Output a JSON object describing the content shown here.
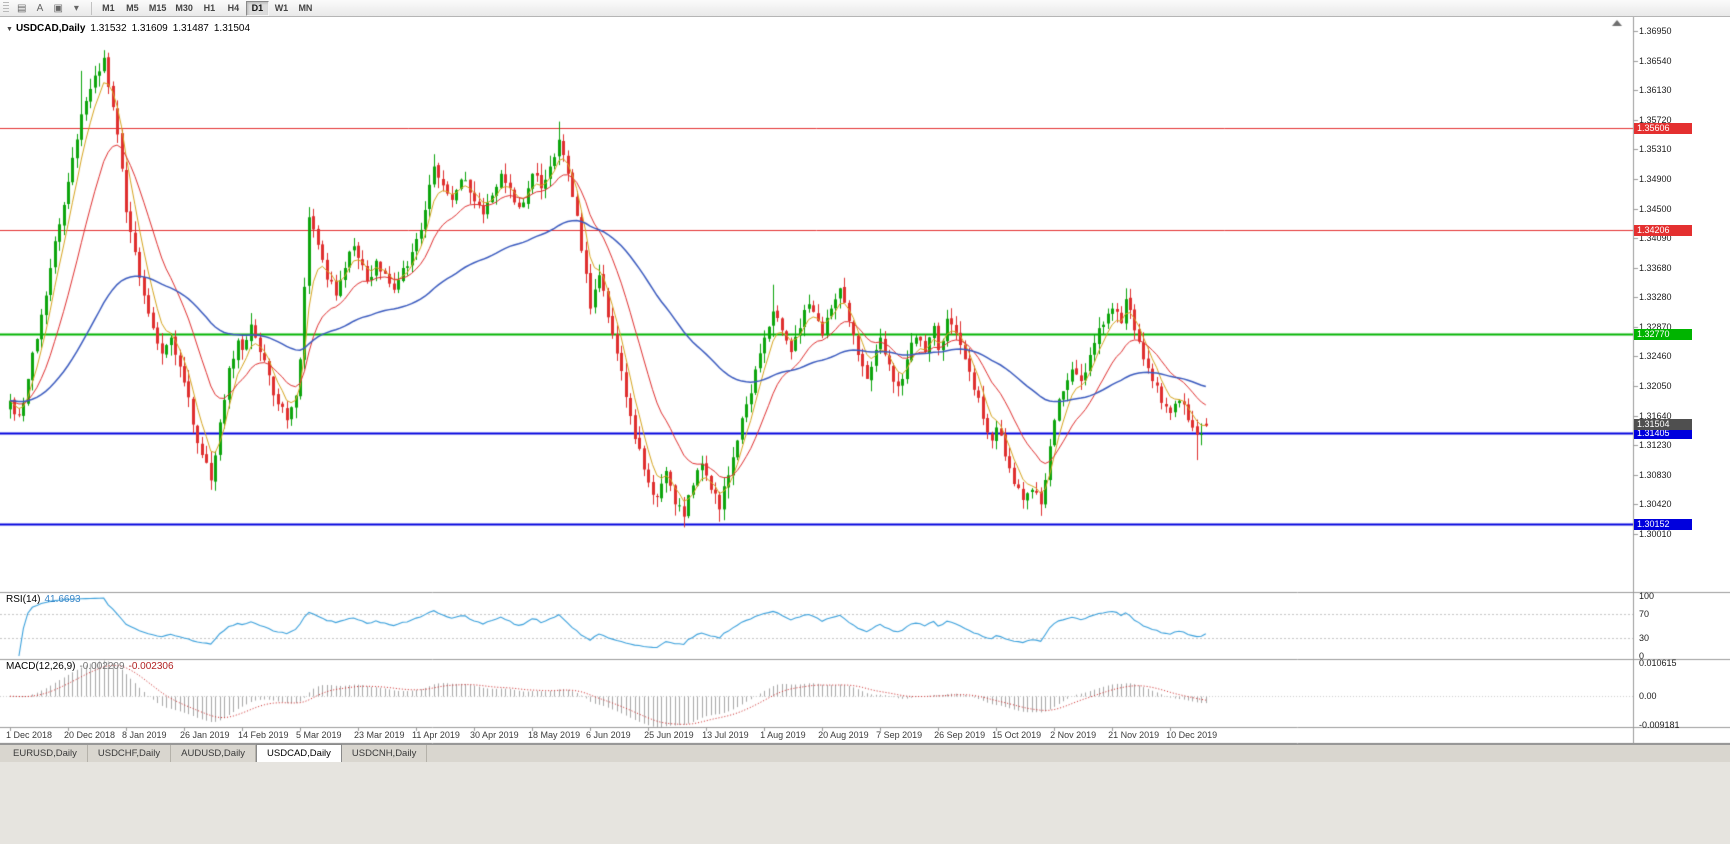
{
  "toolbar": {
    "icons": [
      {
        "name": "chart-list-icon",
        "glyph": "▤"
      },
      {
        "name": "font-button",
        "glyph": "A"
      },
      {
        "name": "chart-window-icon",
        "glyph": "▣"
      },
      {
        "name": "dropdown-icon",
        "glyph": "▾"
      }
    ],
    "timeframes": [
      {
        "label": "M1",
        "active": false
      },
      {
        "label": "M5",
        "active": false
      },
      {
        "label": "M15",
        "active": false
      },
      {
        "label": "M30",
        "active": false
      },
      {
        "label": "H1",
        "active": false
      },
      {
        "label": "H4",
        "active": false
      },
      {
        "label": "D1",
        "active": true
      },
      {
        "label": "W1",
        "active": false
      },
      {
        "label": "MN",
        "active": false
      }
    ]
  },
  "chart": {
    "title": {
      "collapse_icon": "▼",
      "symbol_period": "USDCAD,Daily",
      "open": "1.31532",
      "high": "1.31609",
      "low": "1.31487",
      "close": "1.31504"
    },
    "price_axis": {
      "min": 1.3001,
      "max": 1.3695,
      "ticks": [
        "1.36950",
        "1.36540",
        "1.36130",
        "1.35720",
        "1.35310",
        "1.34900",
        "1.34500",
        "1.34090",
        "1.33680",
        "1.33280",
        "1.32870",
        "1.32460",
        "1.32050",
        "1.31640",
        "1.31230",
        "1.30830",
        "1.30420",
        "1.30010"
      ]
    },
    "hlines": [
      {
        "price": 1.35606,
        "label": "1.35606",
        "color": "#e43030",
        "width": 1
      },
      {
        "price": 1.34206,
        "label": "1.34206",
        "color": "#e43030",
        "width": 1
      },
      {
        "price": 1.3277,
        "label": "1.32770",
        "color": "#00b400",
        "width": 2
      },
      {
        "price": 1.31405,
        "label": "1.31405",
        "color": "#0000dd",
        "width": 2
      },
      {
        "price": 1.30152,
        "label": "1.30152",
        "color": "#0000dd",
        "width": 2
      }
    ],
    "current_price": {
      "price": 1.31504,
      "label": "1.31504",
      "color": "#4f4f4f"
    }
  },
  "rsi": {
    "name": "RSI(14)",
    "period": 14,
    "value": "41.6693",
    "levels": [
      "100",
      "70",
      "30",
      "0"
    ],
    "upper_level": 70,
    "lower_level": 30,
    "line_color": "#3aa0dc"
  },
  "macd": {
    "name": "MACD(12,26,9)",
    "fast": 12,
    "slow": 26,
    "signal": 9,
    "value_main": "-0.002209",
    "value_signal": "-0.002306",
    "axis": [
      "0.010615",
      "0.00",
      "-0.009181"
    ],
    "max": 0.010615,
    "min": -0.009181,
    "histogram_color": "#a8a8a8",
    "signal_color": "#cc2222"
  },
  "tabs": [
    {
      "label": "EURUSD,Daily",
      "active": false
    },
    {
      "label": "USDCHF,Daily",
      "active": false
    },
    {
      "label": "AUDUSD,Daily",
      "active": false
    },
    {
      "label": "USDCAD,Daily",
      "active": true
    },
    {
      "label": "USDCNH,Daily",
      "active": false
    }
  ],
  "chart_data": {
    "type": "candlestick",
    "symbol": "USDCAD",
    "timeframe": "Daily",
    "up_color": "#0da50d",
    "down_color": "#df2f2f",
    "candle_count": 269,
    "candles_per_label": 13,
    "date_labels": [
      "1 Dec 2018",
      "20 Dec 2018",
      "8 Jan 2019",
      "26 Jan 2019",
      "14 Feb 2019",
      "5 Mar 2019",
      "23 Mar 2019",
      "11 Apr 2019",
      "30 Apr 2019",
      "18 May 2019",
      "6 Jun 2019",
      "25 Jun 2019",
      "13 Jul 2019",
      "1 Aug 2019",
      "20 Aug 2019",
      "7 Sep 2019",
      "26 Sep 2019",
      "15 Oct 2019",
      "2 Nov 2019",
      "21 Nov 2019",
      "10 Dec 2019"
    ],
    "close_anchors": [
      [
        0,
        1.3185
      ],
      [
        2,
        1.3165
      ],
      [
        4,
        1.3215
      ],
      [
        6,
        1.327
      ],
      [
        8,
        1.333
      ],
      [
        10,
        1.3405
      ],
      [
        12,
        1.3455
      ],
      [
        14,
        1.352
      ],
      [
        16,
        1.358
      ],
      [
        18,
        1.3615
      ],
      [
        21,
        1.3658
      ],
      [
        23,
        1.359
      ],
      [
        25,
        1.3505
      ],
      [
        26,
        1.3445
      ],
      [
        28,
        1.339
      ],
      [
        30,
        1.333
      ],
      [
        32,
        1.3285
      ],
      [
        34,
        1.325
      ],
      [
        36,
        1.3272
      ],
      [
        38,
        1.3232
      ],
      [
        39,
        1.321
      ],
      [
        41,
        1.3152
      ],
      [
        43,
        1.311
      ],
      [
        45,
        1.3075
      ],
      [
        47,
        1.3155
      ],
      [
        49,
        1.323
      ],
      [
        51,
        1.3268
      ],
      [
        52,
        1.3255
      ],
      [
        54,
        1.329
      ],
      [
        56,
        1.3252
      ],
      [
        58,
        1.322
      ],
      [
        60,
        1.318
      ],
      [
        62,
        1.3158
      ],
      [
        64,
        1.3192
      ],
      [
        65,
        1.3242
      ],
      [
        66,
        1.3342
      ],
      [
        67,
        1.3438
      ],
      [
        69,
        1.34
      ],
      [
        71,
        1.3352
      ],
      [
        73,
        1.333
      ],
      [
        75,
        1.3368
      ],
      [
        77,
        1.3398
      ],
      [
        78,
        1.3382
      ],
      [
        80,
        1.335
      ],
      [
        82,
        1.3378
      ],
      [
        84,
        1.336
      ],
      [
        86,
        1.3338
      ],
      [
        88,
        1.3368
      ],
      [
        90,
        1.339
      ],
      [
        91,
        1.3408
      ],
      [
        93,
        1.3448
      ],
      [
        95,
        1.3508
      ],
      [
        97,
        1.3482
      ],
      [
        99,
        1.3462
      ],
      [
        101,
        1.349
      ],
      [
        103,
        1.3472
      ],
      [
        104,
        1.346
      ],
      [
        106,
        1.3442
      ],
      [
        108,
        1.3468
      ],
      [
        110,
        1.3498
      ],
      [
        112,
        1.3478
      ],
      [
        114,
        1.3452
      ],
      [
        116,
        1.3478
      ],
      [
        117,
        1.3498
      ],
      [
        119,
        1.3478
      ],
      [
        121,
        1.3508
      ],
      [
        123,
        1.3545
      ],
      [
        125,
        1.3498
      ],
      [
        127,
        1.344
      ],
      [
        129,
        1.336
      ],
      [
        130,
        1.3312
      ],
      [
        132,
        1.3358
      ],
      [
        134,
        1.33
      ],
      [
        136,
        1.325
      ],
      [
        138,
        1.319
      ],
      [
        140,
        1.3132
      ],
      [
        142,
        1.309
      ],
      [
        143,
        1.3072
      ],
      [
        145,
        1.3052
      ],
      [
        147,
        1.3088
      ],
      [
        149,
        1.3042
      ],
      [
        151,
        1.3025
      ],
      [
        153,
        1.3068
      ],
      [
        155,
        1.3098
      ],
      [
        157,
        1.3062
      ],
      [
        159,
        1.3035
      ],
      [
        161,
        1.3082
      ],
      [
        163,
        1.313
      ],
      [
        165,
        1.318
      ],
      [
        167,
        1.3228
      ],
      [
        169,
        1.3272
      ],
      [
        171,
        1.3308
      ],
      [
        173,
        1.3282
      ],
      [
        175,
        1.3252
      ],
      [
        177,
        1.3285
      ],
      [
        179,
        1.3318
      ],
      [
        181,
        1.3295
      ],
      [
        182,
        1.3275
      ],
      [
        184,
        1.3312
      ],
      [
        186,
        1.334
      ],
      [
        188,
        1.3295
      ],
      [
        190,
        1.3248
      ],
      [
        192,
        1.3215
      ],
      [
        194,
        1.3255
      ],
      [
        195,
        1.3272
      ],
      [
        197,
        1.3235
      ],
      [
        199,
        1.3205
      ],
      [
        201,
        1.3242
      ],
      [
        203,
        1.3272
      ],
      [
        205,
        1.3252
      ],
      [
        207,
        1.3288
      ],
      [
        208,
        1.3255
      ],
      [
        210,
        1.3298
      ],
      [
        212,
        1.3278
      ],
      [
        214,
        1.3242
      ],
      [
        216,
        1.32
      ],
      [
        218,
        1.316
      ],
      [
        220,
        1.313
      ],
      [
        221,
        1.3148
      ],
      [
        223,
        1.3108
      ],
      [
        225,
        1.307
      ],
      [
        227,
        1.3048
      ],
      [
        229,
        1.3062
      ],
      [
        231,
        1.3042
      ],
      [
        233,
        1.3122
      ],
      [
        234,
        1.3158
      ],
      [
        236,
        1.3198
      ],
      [
        238,
        1.3228
      ],
      [
        240,
        1.3212
      ],
      [
        242,
        1.3248
      ],
      [
        244,
        1.3285
      ],
      [
        246,
        1.3305
      ],
      [
        247,
        1.3312
      ],
      [
        249,
        1.3292
      ],
      [
        250,
        1.3325
      ],
      [
        252,
        1.3282
      ],
      [
        254,
        1.3242
      ],
      [
        256,
        1.3212
      ],
      [
        258,
        1.3182
      ],
      [
        260,
        1.3168
      ],
      [
        262,
        1.3185
      ],
      [
        264,
        1.3158
      ],
      [
        266,
        1.3138
      ],
      [
        268,
        1.31504
      ]
    ],
    "spikes_high": [
      [
        16,
        1.364
      ],
      [
        21,
        1.3665
      ],
      [
        67,
        1.3452
      ],
      [
        95,
        1.3525
      ],
      [
        123,
        1.357
      ],
      [
        171,
        1.3345
      ],
      [
        250,
        1.334
      ]
    ],
    "spikes_low": [
      [
        45,
        1.3062
      ],
      [
        151,
        1.3016
      ],
      [
        159,
        1.3018
      ],
      [
        227,
        1.3036
      ],
      [
        231,
        1.3032
      ],
      [
        266,
        1.3103
      ]
    ],
    "last_candle": {
      "open": 1.31532,
      "high": 1.31609,
      "low": 1.31487,
      "close": 1.31504
    },
    "moving_averages": [
      {
        "name": "fast",
        "period": 5,
        "color": "#d6a51f"
      },
      {
        "name": "medium",
        "period": 15,
        "color": "#e03030"
      },
      {
        "name": "slow",
        "period": 60,
        "color": "#3b5bbf"
      }
    ]
  }
}
